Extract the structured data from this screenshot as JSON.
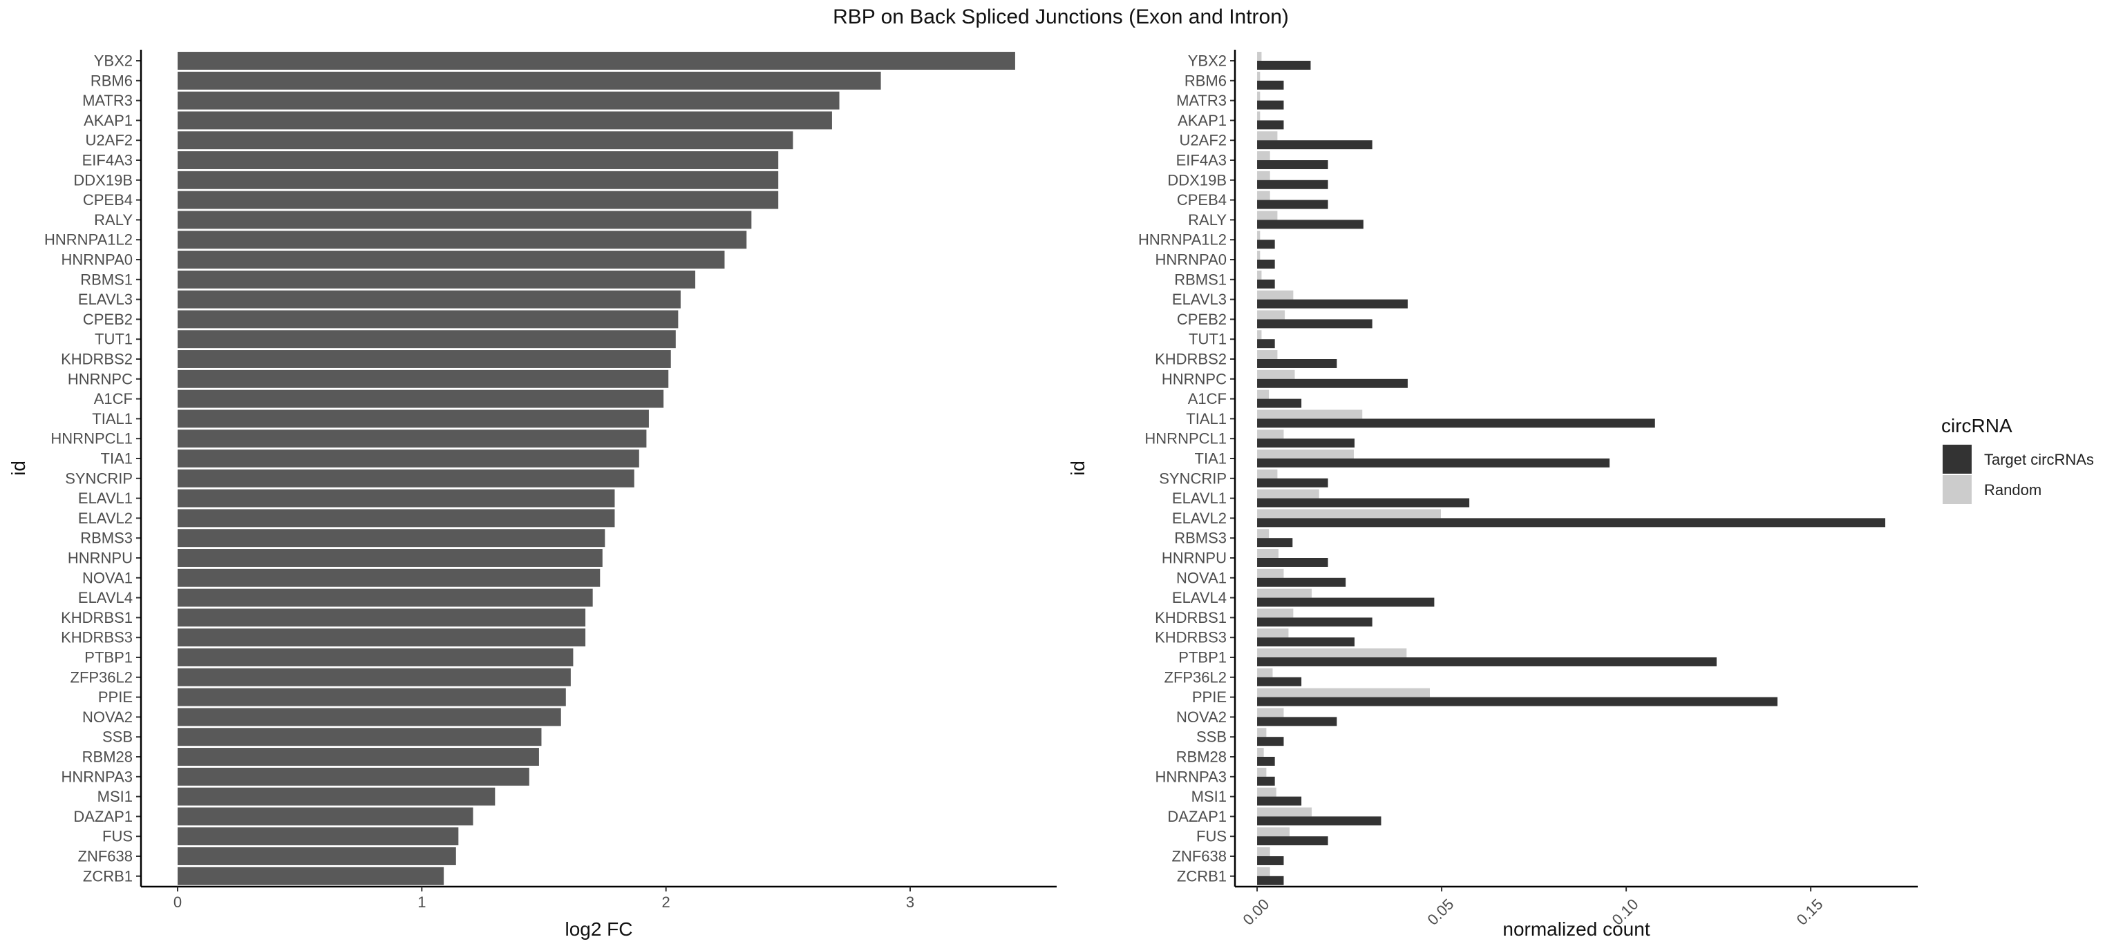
{
  "title": "RBP on Back Spliced Junctions (Exon and Intron)",
  "chart_data": [
    {
      "type": "bar",
      "orientation": "horizontal",
      "xlabel": "log2 FC",
      "ylabel": "id",
      "xlim": [
        -0.15,
        3.6
      ],
      "xticks": [
        0,
        1,
        2,
        3
      ],
      "xtick_labels": [
        "0",
        "1",
        "2",
        "3"
      ],
      "grid": false,
      "bar_color": "#595959",
      "categories": [
        "YBX2",
        "RBM6",
        "MATR3",
        "AKAP1",
        "U2AF2",
        "EIF4A3",
        "DDX19B",
        "CPEB4",
        "RALY",
        "HNRNPA1L2",
        "HNRNPA0",
        "RBMS1",
        "ELAVL3",
        "CPEB2",
        "TUT1",
        "KHDRBS2",
        "HNRNPC",
        "A1CF",
        "TIAL1",
        "HNRNPCL1",
        "TIA1",
        "SYNCRIP",
        "ELAVL1",
        "ELAVL2",
        "RBMS3",
        "HNRNPU",
        "NOVA1",
        "ELAVL4",
        "KHDRBS1",
        "KHDRBS3",
        "PTBP1",
        "ZFP36L2",
        "PPIE",
        "NOVA2",
        "SSB",
        "RBM28",
        "HNRNPA3",
        "MSI1",
        "DAZAP1",
        "FUS",
        "ZNF638",
        "ZCRB1"
      ],
      "values": [
        3.43,
        2.88,
        2.71,
        2.68,
        2.52,
        2.46,
        2.46,
        2.46,
        2.35,
        2.33,
        2.24,
        2.12,
        2.06,
        2.05,
        2.04,
        2.02,
        2.01,
        1.99,
        1.93,
        1.92,
        1.89,
        1.87,
        1.79,
        1.79,
        1.75,
        1.74,
        1.73,
        1.7,
        1.67,
        1.67,
        1.62,
        1.61,
        1.59,
        1.57,
        1.49,
        1.48,
        1.44,
        1.3,
        1.21,
        1.15,
        1.14,
        1.09
      ]
    },
    {
      "type": "bar",
      "orientation": "horizontal",
      "grouped": true,
      "xlabel": "normalized count",
      "ylabel": "id",
      "xlim": [
        -0.006,
        0.179
      ],
      "xticks": [
        0,
        0.05,
        0.1,
        0.15
      ],
      "xtick_labels": [
        "0.00",
        "0.05",
        "0.10",
        "0.15"
      ],
      "xtick_rotation": -45,
      "grid": false,
      "categories": [
        "YBX2",
        "RBM6",
        "MATR3",
        "AKAP1",
        "U2AF2",
        "EIF4A3",
        "DDX19B",
        "CPEB4",
        "RALY",
        "HNRNPA1L2",
        "HNRNPA0",
        "RBMS1",
        "ELAVL3",
        "CPEB2",
        "TUT1",
        "KHDRBS2",
        "HNRNPC",
        "A1CF",
        "TIAL1",
        "HNRNPCL1",
        "TIA1",
        "SYNCRIP",
        "ELAVL1",
        "ELAVL2",
        "RBMS3",
        "HNRNPU",
        "NOVA1",
        "ELAVL4",
        "KHDRBS1",
        "KHDRBS3",
        "PTBP1",
        "ZFP36L2",
        "PPIE",
        "NOVA2",
        "SSB",
        "RBM28",
        "HNRNPA3",
        "MSI1",
        "DAZAP1",
        "FUS",
        "ZNF638",
        "ZCRB1"
      ],
      "legend": {
        "title": "circRNA",
        "position": "right"
      },
      "series": [
        {
          "name": "Random",
          "color": "#cccccc",
          "values": [
            0.0012,
            0.0008,
            0.0008,
            0.0008,
            0.0055,
            0.0035,
            0.0035,
            0.0035,
            0.0055,
            0.0008,
            0.0008,
            0.0012,
            0.0098,
            0.0075,
            0.0012,
            0.0055,
            0.0102,
            0.0032,
            0.0285,
            0.0072,
            0.0262,
            0.0055,
            0.0168,
            0.0498,
            0.0032,
            0.0058,
            0.0072,
            0.0148,
            0.0098,
            0.0085,
            0.0405,
            0.0042,
            0.0468,
            0.0072,
            0.0025,
            0.0018,
            0.0025,
            0.0052,
            0.0148,
            0.0088,
            0.0035,
            0.0035
          ]
        },
        {
          "name": "Target circRNAs",
          "color": "#333333",
          "values": [
            0.0145,
            0.0072,
            0.0072,
            0.0072,
            0.0312,
            0.0192,
            0.0192,
            0.0192,
            0.0288,
            0.0048,
            0.0048,
            0.0048,
            0.0408,
            0.0312,
            0.0048,
            0.0216,
            0.0408,
            0.012,
            0.1078,
            0.0264,
            0.0955,
            0.0192,
            0.0575,
            0.1702,
            0.0096,
            0.0192,
            0.024,
            0.048,
            0.0312,
            0.0264,
            0.1245,
            0.012,
            0.141,
            0.0216,
            0.0072,
            0.0048,
            0.0048,
            0.012,
            0.0336,
            0.0192,
            0.0072,
            0.0072
          ]
        }
      ]
    }
  ]
}
